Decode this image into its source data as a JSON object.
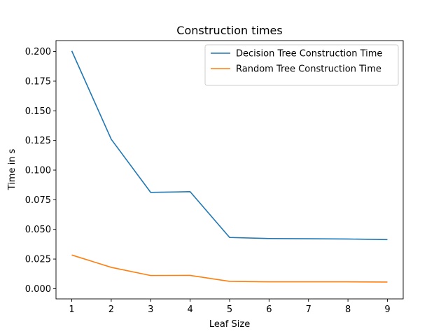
{
  "chart_data": {
    "type": "line",
    "title": "Construction times",
    "xlabel": "Leaf Size",
    "ylabel": "Time in s",
    "x": [
      1,
      2,
      3,
      4,
      5,
      6,
      7,
      8,
      9
    ],
    "xticks": [
      "1",
      "2",
      "3",
      "4",
      "5",
      "6",
      "7",
      "8",
      "9"
    ],
    "yticks": [
      "0.000",
      "0.025",
      "0.050",
      "0.075",
      "0.100",
      "0.125",
      "0.150",
      "0.175",
      "0.200"
    ],
    "xlim": [
      0.6,
      9.4
    ],
    "ylim": [
      -0.0086,
      0.2092
    ],
    "grid": false,
    "legend_position": "upper right",
    "series": [
      {
        "name": "Decision Tree Construction Time",
        "color": "#1f77b4",
        "values": [
          0.2005,
          0.126,
          0.0812,
          0.0818,
          0.0432,
          0.0423,
          0.0421,
          0.0419,
          0.0414
        ]
      },
      {
        "name": "Random Tree Construction Time",
        "color": "#ff7f0e",
        "values": [
          0.0284,
          0.018,
          0.0111,
          0.0112,
          0.0062,
          0.0058,
          0.0058,
          0.0058,
          0.0056
        ]
      }
    ]
  }
}
